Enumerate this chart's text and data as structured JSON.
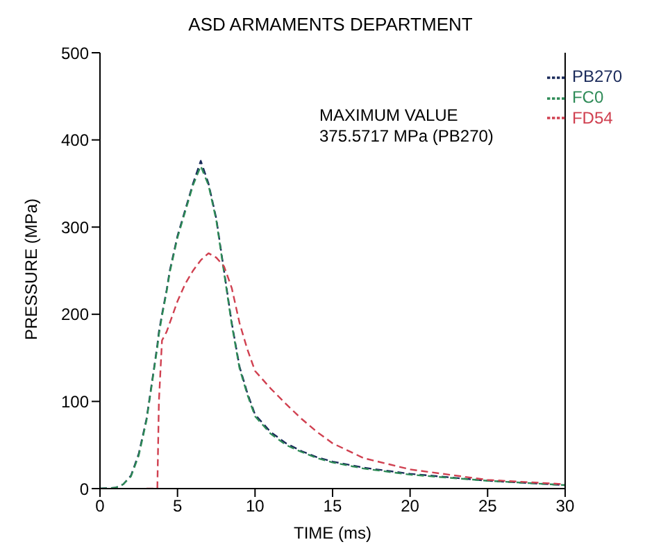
{
  "chart_data": {
    "type": "line",
    "title": "ASD ARMAMENTS DEPARTMENT",
    "xlabel": "TIME (ms)",
    "ylabel": "PRESSURE (MPa)",
    "annotations": [
      "MAXIMUM VALUE\n375.5717 MPa (PB270)"
    ],
    "x": [
      0,
      1,
      1.5,
      2,
      2.5,
      3,
      3.5,
      3.7,
      3.8,
      4,
      4.3,
      4.5,
      5,
      5.5,
      6,
      6.5,
      7,
      7.5,
      8,
      8.5,
      9,
      9.5,
      10,
      11,
      12,
      13,
      14,
      15,
      17,
      20,
      25,
      30
    ],
    "series": [
      {
        "name": "PB270",
        "color": "#1a2a5a",
        "values": [
          0,
          1,
          5,
          15,
          40,
          80,
          140,
          165,
          180,
          200,
          228,
          250,
          290,
          320,
          350,
          376,
          350,
          310,
          250,
          190,
          140,
          110,
          85,
          65,
          52,
          43,
          36,
          31,
          24,
          17,
          9,
          4
        ]
      },
      {
        "name": "FC0",
        "color": "#2e8b57",
        "values": [
          0,
          1,
          5,
          14,
          38,
          78,
          138,
          162,
          177,
          198,
          226,
          248,
          288,
          318,
          348,
          370,
          348,
          308,
          248,
          188,
          138,
          108,
          83,
          63,
          50,
          42,
          35,
          30,
          23,
          16,
          9,
          4
        ]
      },
      {
        "name": "FD54",
        "color": "#d04050",
        "values": [
          null,
          null,
          null,
          null,
          null,
          0,
          0,
          0,
          100,
          170,
          180,
          190,
          215,
          235,
          250,
          262,
          270,
          265,
          255,
          230,
          190,
          160,
          135,
          115,
          97,
          80,
          65,
          52,
          35,
          22,
          10,
          5
        ]
      }
    ],
    "xlim": [
      0,
      30
    ],
    "xticks": [
      0,
      5,
      10,
      15,
      20,
      25,
      30
    ],
    "ylim": [
      0,
      500
    ],
    "yticks": [
      0,
      100,
      200,
      300,
      400,
      500
    ],
    "grid": false,
    "legend": "top right",
    "line_style": "dashed",
    "marker": "none"
  }
}
